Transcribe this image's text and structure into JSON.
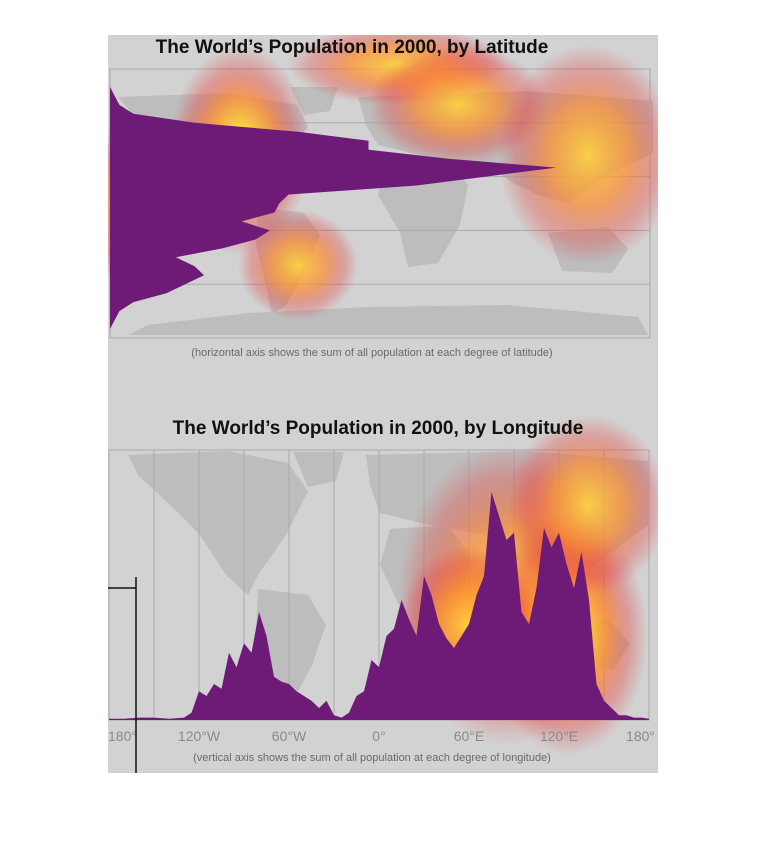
{
  "colors": {
    "background": "#d2d2d2",
    "land": "#bdbdbd",
    "grid": "#a9a9a9",
    "fill": "#6e1b78",
    "heat": [
      "#ffffff",
      "#ffe23a",
      "#ff8c2a",
      "#e83b3b"
    ]
  },
  "chart_data": [
    {
      "type": "area",
      "orientation": "horizontal",
      "title": "The World’s Population in 2000, by Latitude",
      "note": "(horizontal axis shows the sum of all population at each degree of latitude)",
      "grid": true,
      "y_axis": "latitude",
      "ylim": [
        90,
        -60
      ],
      "x": [
        85,
        80,
        75,
        70,
        65,
        60,
        55,
        50,
        45,
        40,
        35,
        30,
        25,
        20,
        15,
        10,
        5,
        0,
        -5,
        -10,
        -15,
        -20,
        -25,
        -30,
        -35,
        -40,
        -45,
        -50,
        -55
      ],
      "values": [
        0.0,
        0.0,
        0.01,
        0.02,
        0.05,
        0.18,
        0.4,
        0.55,
        0.55,
        0.72,
        0.95,
        0.8,
        0.65,
        0.38,
        0.36,
        0.35,
        0.28,
        0.34,
        0.31,
        0.24,
        0.14,
        0.18,
        0.2,
        0.16,
        0.12,
        0.05,
        0.02,
        0.01,
        0.0
      ]
    },
    {
      "type": "area",
      "title": "The World’s Population in 2000, by Longitude",
      "note": "(vertical axis shows the sum of all population at each degree of longitude)",
      "grid": true,
      "x_axis": "longitude",
      "xlim": [
        -180,
        180
      ],
      "tick_labels": [
        "180°",
        "120°W",
        "60°W",
        "0°",
        "60°E",
        "120°E",
        "180°"
      ],
      "x": [
        -180,
        -170,
        -160,
        -150,
        -140,
        -130,
        -125,
        -120,
        -115,
        -110,
        -105,
        -100,
        -95,
        -90,
        -85,
        -80,
        -75,
        -70,
        -65,
        -60,
        -55,
        -50,
        -45,
        -40,
        -35,
        -30,
        -25,
        -20,
        -15,
        -10,
        -5,
        0,
        5,
        10,
        15,
        20,
        25,
        30,
        35,
        40,
        45,
        50,
        55,
        60,
        65,
        70,
        75,
        80,
        85,
        90,
        95,
        100,
        105,
        110,
        115,
        120,
        125,
        130,
        135,
        140,
        145,
        150,
        155,
        160,
        165,
        170,
        175,
        180
      ],
      "values": [
        0.005,
        0.005,
        0.01,
        0.01,
        0.005,
        0.01,
        0.03,
        0.12,
        0.1,
        0.15,
        0.13,
        0.28,
        0.22,
        0.32,
        0.28,
        0.45,
        0.35,
        0.18,
        0.16,
        0.15,
        0.12,
        0.1,
        0.08,
        0.05,
        0.08,
        0.02,
        0.01,
        0.03,
        0.1,
        0.12,
        0.25,
        0.22,
        0.35,
        0.38,
        0.5,
        0.42,
        0.35,
        0.6,
        0.52,
        0.4,
        0.34,
        0.3,
        0.35,
        0.4,
        0.52,
        0.6,
        0.95,
        0.85,
        0.75,
        0.78,
        0.45,
        0.4,
        0.55,
        0.8,
        0.72,
        0.78,
        0.65,
        0.55,
        0.7,
        0.5,
        0.15,
        0.08,
        0.05,
        0.02,
        0.02,
        0.01,
        0.01,
        0.005
      ]
    }
  ]
}
